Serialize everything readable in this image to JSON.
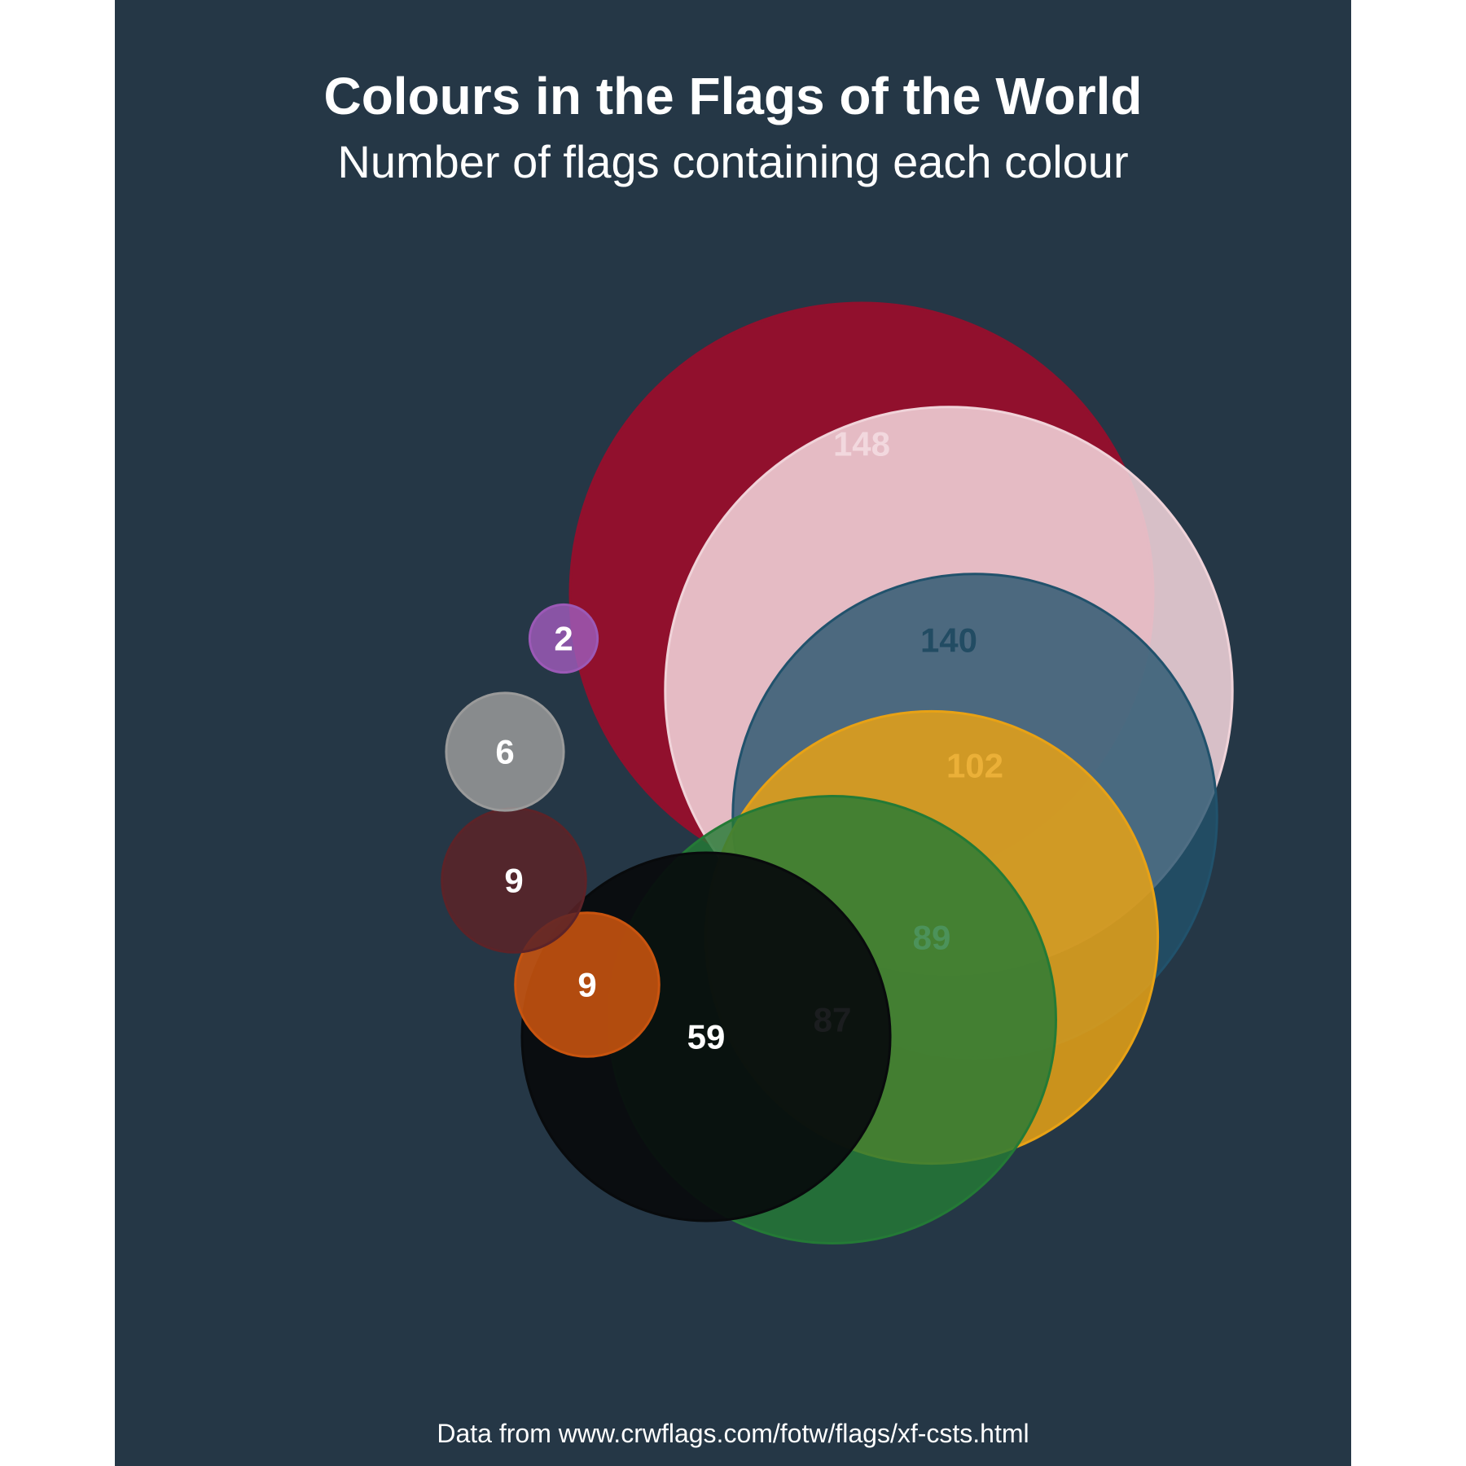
{
  "chart_data": {
    "type": "bubble",
    "title": "Colours in the Flags of the World",
    "subtitle": "Number of flags containing each colour",
    "source": "Data from www.crwflags.com/fotw/flags/xf-csts.html",
    "series": [
      {
        "value": 148,
        "color": "#91102d",
        "label_color": "#ffffff"
      },
      {
        "value": 140,
        "color": "#f0d3d9",
        "label_color": "#253746"
      },
      {
        "value": 102,
        "color": "#21526c",
        "label_color": "#ffffff"
      },
      {
        "value": 89,
        "color": "#e8a215",
        "label_color": "#ffffff"
      },
      {
        "value": 87,
        "color": "#247a36",
        "label_color": "#ffffff"
      },
      {
        "value": 59,
        "color": "#080a0c",
        "label_color": "#ffffff"
      },
      {
        "value": 9,
        "color": "#c9540f",
        "label_color": "#ffffff"
      },
      {
        "value": 9,
        "color": "#5c2328",
        "label_color": "#ffffff"
      },
      {
        "value": 6,
        "color": "#9a9a9a",
        "label_color": "#ffffff"
      },
      {
        "value": 2,
        "color": "#9b59b6",
        "label_color": "#ffffff"
      }
    ]
  }
}
